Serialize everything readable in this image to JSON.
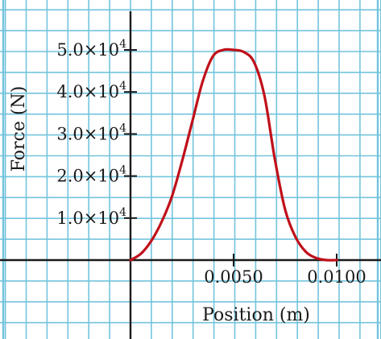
{
  "chart_data": {
    "type": "line",
    "title": "",
    "xlabel": "Position (m)",
    "ylabel": "Force (N)",
    "xlim": [
      -0.0062,
      0.0118
    ],
    "ylim": [
      -3.0,
      6.5
    ],
    "x_unit": "m",
    "y_unit": "N",
    "y_scale_factor": 10000,
    "x_ticks": [
      {
        "value": 0.005,
        "label": "0.0050"
      },
      {
        "value": 0.01,
        "label": "0.0100"
      }
    ],
    "y_ticks": [
      {
        "value": 1.0,
        "mantissa": "1.0",
        "times": "×",
        "base": "10",
        "exponent": "4"
      },
      {
        "value": 2.0,
        "mantissa": "2.0",
        "times": "×",
        "base": "10",
        "exponent": "4"
      },
      {
        "value": 3.0,
        "mantissa": "3.0",
        "times": "×",
        "base": "10",
        "exponent": "4"
      },
      {
        "value": 4.0,
        "mantissa": "4.0",
        "times": "×",
        "base": "10",
        "exponent": "4"
      },
      {
        "value": 5.0,
        "mantissa": "5.0",
        "times": "×",
        "base": "10",
        "exponent": "4"
      }
    ],
    "series": [
      {
        "color": "#c0101a",
        "x": [
          0.0,
          0.0005,
          0.001,
          0.0015,
          0.002,
          0.0025,
          0.003,
          0.0035,
          0.004,
          0.0045,
          0.005,
          0.0055,
          0.006,
          0.0065,
          0.007,
          0.0075,
          0.008,
          0.0085,
          0.009,
          0.0095,
          0.01
        ],
        "y": [
          0.0,
          0.15,
          0.45,
          0.9,
          1.5,
          2.35,
          3.3,
          4.25,
          4.85,
          5.0,
          5.0,
          4.95,
          4.7,
          3.9,
          2.4,
          1.2,
          0.55,
          0.2,
          0.05,
          0.0,
          0.0
        ]
      }
    ],
    "grid": true,
    "grid_color": "#73c4dc",
    "axis_color": "#1a1a1a",
    "legend": false
  }
}
